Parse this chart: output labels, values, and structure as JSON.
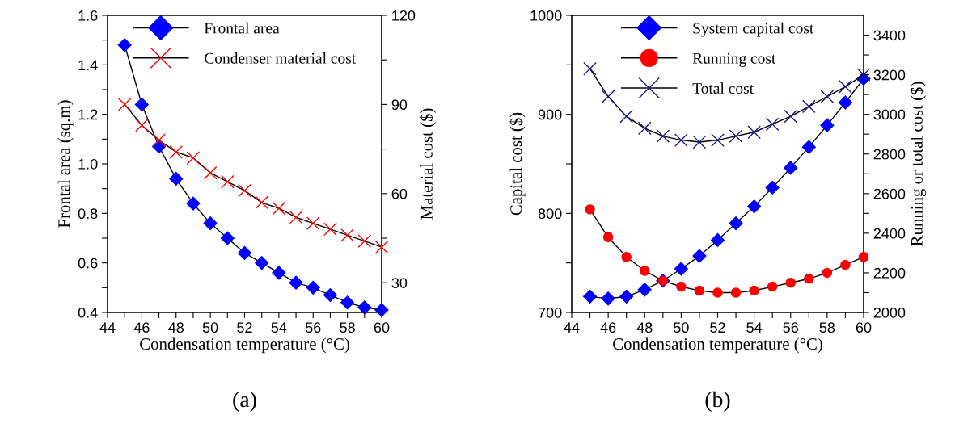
{
  "chart_data": [
    {
      "type": "line",
      "xlabel": "Condensation temperature (°C)",
      "ylabel": "Frontal area (sq.m)",
      "y2label": "Material cost ($)",
      "annotations": [
        "(a)"
      ],
      "x": [
        45,
        46,
        47,
        48,
        49,
        50,
        51,
        52,
        53,
        54,
        55,
        56,
        57,
        58,
        59,
        60
      ],
      "xlim": [
        44,
        60
      ],
      "xticks": [
        44,
        {
          "value": 45,
          "label": null
        },
        46,
        {
          "value": 47,
          "label": null
        },
        48,
        {
          "value": 49,
          "label": null
        },
        50,
        {
          "value": 51,
          "label": null
        },
        52,
        {
          "value": 53,
          "label": null
        },
        54,
        {
          "value": 55,
          "label": null
        },
        56,
        {
          "value": 57,
          "label": null
        },
        58,
        {
          "value": 59,
          "label": null
        },
        60
      ],
      "ylim": [
        0.4,
        1.6
      ],
      "yticks": [
        {
          "value": 0.4,
          "label": "0.4"
        },
        {
          "value": 0.5,
          "label": null
        },
        {
          "value": 0.6,
          "label": "0.6"
        },
        {
          "value": 0.7,
          "label": null
        },
        {
          "value": 0.8,
          "label": "0.8"
        },
        {
          "value": 0.9,
          "label": null
        },
        {
          "value": 1.0,
          "label": "1.0"
        },
        {
          "value": 1.1,
          "label": null
        },
        {
          "value": 1.2,
          "label": "1.2"
        },
        {
          "value": 1.3,
          "label": null
        },
        {
          "value": 1.4,
          "label": "1.4"
        },
        {
          "value": 1.5,
          "label": null
        },
        {
          "value": 1.6,
          "label": "1.6"
        }
      ],
      "y2lim": [
        20,
        120
      ],
      "y2ticks": [
        30,
        {
          "value": 45,
          "label": null
        },
        60,
        {
          "value": 75,
          "label": null
        },
        90,
        {
          "value": 105,
          "label": null
        },
        120
      ],
      "legend": "top",
      "grid": false,
      "series": [
        {
          "name": "Frontal area",
          "color": "#0000ff",
          "marker": "diamond",
          "values": [
            1.48,
            1.24,
            1.07,
            0.94,
            0.84,
            0.76,
            0.7,
            0.64,
            0.6,
            0.56,
            0.52,
            0.5,
            0.47,
            0.44,
            0.42,
            0.41
          ]
        },
        {
          "name": "Condenser material cost",
          "color": "#ff0000",
          "marker": "cross",
          "axis": "y2",
          "values": [
            90,
            83,
            78,
            74,
            72,
            67,
            64,
            61,
            57,
            55,
            52,
            50,
            48,
            46,
            44,
            42
          ]
        }
      ]
    },
    {
      "type": "line",
      "xlabel": "Condensation temperature (°C)",
      "ylabel": "Capital cost ($)",
      "y2label": "Running or total cost ($)",
      "annotations": [
        "(b)"
      ],
      "x": [
        45,
        46,
        47,
        48,
        49,
        50,
        51,
        52,
        53,
        54,
        55,
        56,
        57,
        58,
        59,
        60
      ],
      "xlim": [
        44,
        60
      ],
      "xticks": [
        44,
        {
          "value": 45,
          "label": null
        },
        46,
        {
          "value": 47,
          "label": null
        },
        48,
        {
          "value": 49,
          "label": null
        },
        50,
        {
          "value": 51,
          "label": null
        },
        52,
        {
          "value": 53,
          "label": null
        },
        54,
        {
          "value": 55,
          "label": null
        },
        56,
        {
          "value": 57,
          "label": null
        },
        58,
        {
          "value": 59,
          "label": null
        },
        60
      ],
      "ylim": [
        700,
        1000
      ],
      "yticks": [
        700,
        {
          "value": 750,
          "label": null
        },
        800,
        {
          "value": 850,
          "label": null
        },
        900,
        {
          "value": 950,
          "label": null
        },
        1000
      ],
      "y2lim": [
        2000,
        3500
      ],
      "y2ticks": [
        2000,
        {
          "value": 2100,
          "label": null
        },
        2200,
        {
          "value": 2300,
          "label": null
        },
        2400,
        {
          "value": 2500,
          "label": null
        },
        2600,
        {
          "value": 2700,
          "label": null
        },
        2800,
        {
          "value": 2900,
          "label": null
        },
        3000,
        {
          "value": 3100,
          "label": null
        },
        3200,
        {
          "value": 3300,
          "label": null
        },
        3400
      ],
      "legend": "top",
      "grid": false,
      "series": [
        {
          "name": "System capital cost",
          "color": "#0000ff",
          "marker": "diamond",
          "values": [
            716,
            714,
            716,
            723,
            732,
            744,
            757,
            773,
            790,
            807,
            826,
            846,
            867,
            889,
            912,
            936
          ]
        },
        {
          "name": "Running cost",
          "color": "#ff0000",
          "marker": "circle",
          "axis": "y2",
          "values": [
            2520,
            2380,
            2280,
            2210,
            2160,
            2130,
            2110,
            2100,
            2100,
            2110,
            2130,
            2150,
            2170,
            2200,
            2240,
            2280
          ]
        },
        {
          "name": "Total cost",
          "color": "#1a1a80",
          "marker": "cross",
          "axis": "y2",
          "values": [
            3230,
            3090,
            2990,
            2930,
            2890,
            2870,
            2860,
            2870,
            2890,
            2910,
            2950,
            2990,
            3040,
            3090,
            3140,
            3200
          ]
        }
      ]
    }
  ]
}
